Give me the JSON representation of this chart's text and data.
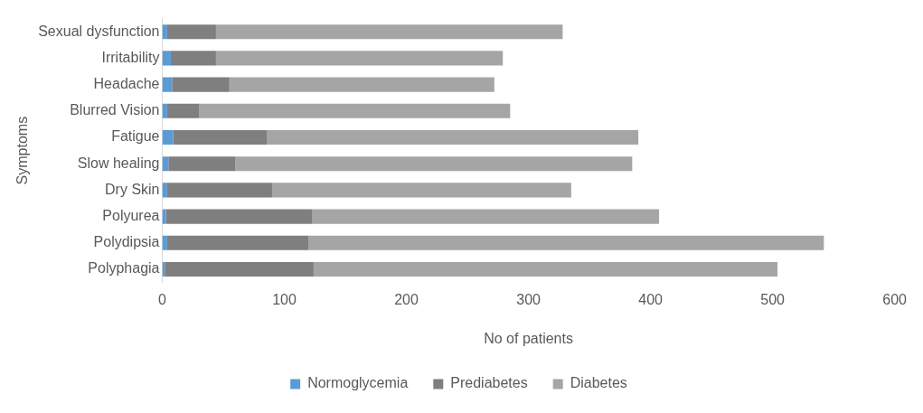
{
  "chart_data": {
    "type": "bar",
    "orientation": "horizontal",
    "stacked": true,
    "xlabel": "No of patients",
    "ylabel": "Symptoms",
    "categories": [
      "Sexual dysfunction",
      "Irritability",
      "Headache",
      "Blurred Vision",
      "Fatigue",
      "Slow healing",
      "Dry Skin",
      "Polyurea",
      "Polydipsia",
      "Polyphagia"
    ],
    "series": [
      {
        "name": "Normoglycemia",
        "color": "#5b9bd5",
        "values": [
          4,
          7,
          8,
          4,
          9,
          5,
          4,
          3,
          4,
          2
        ]
      },
      {
        "name": "Prediabetes",
        "color": "#7f7f7f",
        "values": [
          40,
          37,
          47,
          26,
          77,
          55,
          86,
          120,
          116,
          122
        ]
      },
      {
        "name": "Diabetes",
        "color": "#a5a5a5",
        "values": [
          284,
          235,
          217,
          255,
          304,
          325,
          245,
          284,
          422,
          380
        ]
      }
    ],
    "xlim": [
      0,
      600
    ],
    "xticks": [
      0,
      100,
      200,
      300,
      400,
      500,
      600
    ],
    "grid": false,
    "legend": "bottom"
  }
}
